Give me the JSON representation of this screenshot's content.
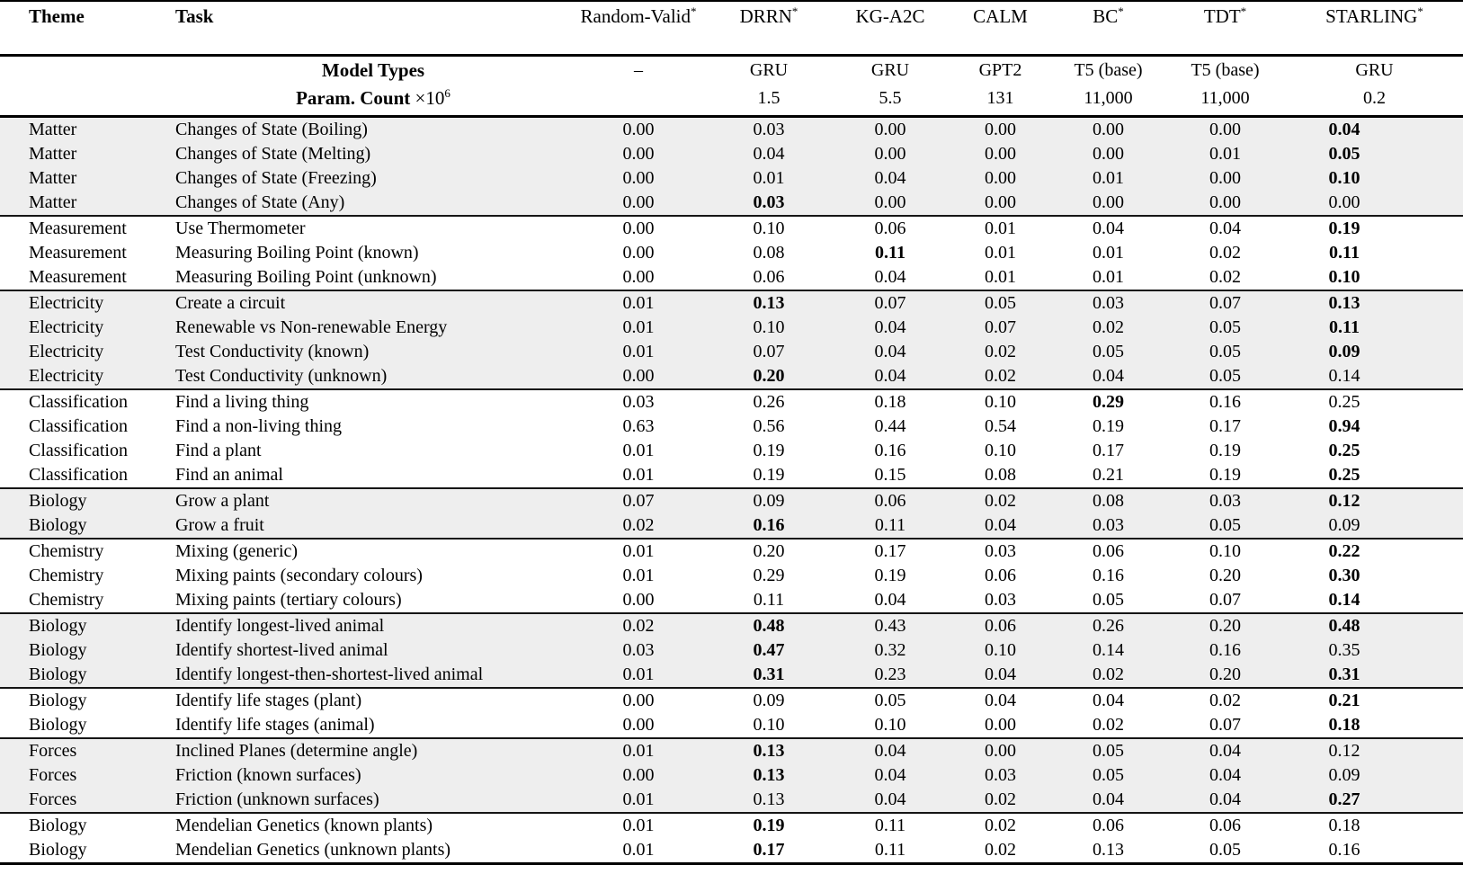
{
  "table": {
    "col_headers": {
      "theme": "Theme",
      "task": "Task"
    },
    "model_row_label": "Model Types",
    "param_row_label": "Param. Count",
    "param_times": "×10",
    "param_exp": "6",
    "columns": [
      {
        "label": "Random-Valid",
        "star": "*",
        "model": "–",
        "params": ""
      },
      {
        "label": "DRRN",
        "star": "*",
        "model": "GRU",
        "params": "1.5"
      },
      {
        "label": "KG-A2C",
        "star": "",
        "model": "GRU",
        "params": "5.5"
      },
      {
        "label": "CALM",
        "star": "",
        "model": "GPT2",
        "params": "131"
      },
      {
        "label": "BC",
        "star": "*",
        "model": "T5 (base)",
        "params": "11,000"
      },
      {
        "label": "TDT",
        "star": "*",
        "model": "T5 (base)",
        "params": "11,000"
      },
      {
        "label": "STARLING",
        "star": "*",
        "model": "GRU",
        "params": "0.2"
      }
    ],
    "groups": [
      {
        "shaded": true,
        "rows": [
          {
            "theme": "Matter",
            "task": "Changes of State (Boiling)",
            "values": [
              "0.00",
              "0.03",
              "0.00",
              "0.00",
              "0.00",
              "0.00",
              "0.04"
            ],
            "bold": [
              6
            ]
          },
          {
            "theme": "Matter",
            "task": "Changes of State (Melting)",
            "values": [
              "0.00",
              "0.04",
              "0.00",
              "0.00",
              "0.00",
              "0.01",
              "0.05"
            ],
            "bold": [
              6
            ]
          },
          {
            "theme": "Matter",
            "task": "Changes of State (Freezing)",
            "values": [
              "0.00",
              "0.01",
              "0.04",
              "0.00",
              "0.01",
              "0.00",
              "0.10"
            ],
            "bold": [
              6
            ]
          },
          {
            "theme": "Matter",
            "task": "Changes of State (Any)",
            "values": [
              "0.00",
              "0.03",
              "0.00",
              "0.00",
              "0.00",
              "0.00",
              "0.00"
            ],
            "bold": [
              1
            ]
          }
        ]
      },
      {
        "shaded": false,
        "rows": [
          {
            "theme": "Measurement",
            "task": "Use Thermometer",
            "values": [
              "0.00",
              "0.10",
              "0.06",
              "0.01",
              "0.04",
              "0.04",
              "0.19"
            ],
            "bold": [
              6
            ]
          },
          {
            "theme": "Measurement",
            "task": "Measuring Boiling Point (known)",
            "values": [
              "0.00",
              "0.08",
              "0.11",
              "0.01",
              "0.01",
              "0.02",
              "0.11"
            ],
            "bold": [
              2,
              6
            ]
          },
          {
            "theme": "Measurement",
            "task": "Measuring Boiling Point (unknown)",
            "values": [
              "0.00",
              "0.06",
              "0.04",
              "0.01",
              "0.01",
              "0.02",
              "0.10"
            ],
            "bold": [
              6
            ]
          }
        ]
      },
      {
        "shaded": true,
        "rows": [
          {
            "theme": "Electricity",
            "task": "Create a circuit",
            "values": [
              "0.01",
              "0.13",
              "0.07",
              "0.05",
              "0.03",
              "0.07",
              "0.13"
            ],
            "bold": [
              1,
              6
            ]
          },
          {
            "theme": "Electricity",
            "task": "Renewable vs Non-renewable Energy",
            "values": [
              "0.01",
              "0.10",
              "0.04",
              "0.07",
              "0.02",
              "0.05",
              "0.11"
            ],
            "bold": [
              6
            ]
          },
          {
            "theme": "Electricity",
            "task": "Test Conductivity (known)",
            "values": [
              "0.01",
              "0.07",
              "0.04",
              "0.02",
              "0.05",
              "0.05",
              "0.09"
            ],
            "bold": [
              6
            ]
          },
          {
            "theme": "Electricity",
            "task": "Test Conductivity (unknown)",
            "values": [
              "0.00",
              "0.20",
              "0.04",
              "0.02",
              "0.04",
              "0.05",
              "0.14"
            ],
            "bold": [
              1
            ]
          }
        ]
      },
      {
        "shaded": false,
        "rows": [
          {
            "theme": "Classification",
            "task": "Find a living thing",
            "values": [
              "0.03",
              "0.26",
              "0.18",
              "0.10",
              "0.29",
              "0.16",
              "0.25"
            ],
            "bold": [
              4
            ]
          },
          {
            "theme": "Classification",
            "task": "Find a non-living thing",
            "values": [
              "0.63",
              "0.56",
              "0.44",
              "0.54",
              "0.19",
              "0.17",
              "0.94"
            ],
            "bold": [
              6
            ]
          },
          {
            "theme": "Classification",
            "task": "Find a plant",
            "values": [
              "0.01",
              "0.19",
              "0.16",
              "0.10",
              "0.17",
              "0.19",
              "0.25"
            ],
            "bold": [
              6
            ]
          },
          {
            "theme": "Classification",
            "task": "Find an animal",
            "values": [
              "0.01",
              "0.19",
              "0.15",
              "0.08",
              "0.21",
              "0.19",
              "0.25"
            ],
            "bold": [
              6
            ]
          }
        ]
      },
      {
        "shaded": true,
        "rows": [
          {
            "theme": "Biology",
            "task": "Grow a plant",
            "values": [
              "0.07",
              "0.09",
              "0.06",
              "0.02",
              "0.08",
              "0.03",
              "0.12"
            ],
            "bold": [
              6
            ]
          },
          {
            "theme": "Biology",
            "task": "Grow a fruit",
            "values": [
              "0.02",
              "0.16",
              "0.11",
              "0.04",
              "0.03",
              "0.05",
              "0.09"
            ],
            "bold": [
              1
            ]
          }
        ]
      },
      {
        "shaded": false,
        "rows": [
          {
            "theme": "Chemistry",
            "task": "Mixing (generic)",
            "values": [
              "0.01",
              "0.20",
              "0.17",
              "0.03",
              "0.06",
              "0.10",
              "0.22"
            ],
            "bold": [
              6
            ]
          },
          {
            "theme": "Chemistry",
            "task": "Mixing paints (secondary colours)",
            "values": [
              "0.01",
              "0.29",
              "0.19",
              "0.06",
              "0.16",
              "0.20",
              "0.30"
            ],
            "bold": [
              6
            ]
          },
          {
            "theme": "Chemistry",
            "task": "Mixing paints (tertiary colours)",
            "values": [
              "0.00",
              "0.11",
              "0.04",
              "0.03",
              "0.05",
              "0.07",
              "0.14"
            ],
            "bold": [
              6
            ]
          }
        ]
      },
      {
        "shaded": true,
        "rows": [
          {
            "theme": "Biology",
            "task": "Identify longest-lived animal",
            "values": [
              "0.02",
              "0.48",
              "0.43",
              "0.06",
              "0.26",
              "0.20",
              "0.48"
            ],
            "bold": [
              1,
              6
            ]
          },
          {
            "theme": "Biology",
            "task": "Identify shortest-lived animal",
            "values": [
              "0.03",
              "0.47",
              "0.32",
              "0.10",
              "0.14",
              "0.16",
              "0.35"
            ],
            "bold": [
              1
            ]
          },
          {
            "theme": "Biology",
            "task": "Identify longest-then-shortest-lived animal",
            "values": [
              "0.01",
              "0.31",
              "0.23",
              "0.04",
              "0.02",
              "0.20",
              "0.31"
            ],
            "bold": [
              1,
              6
            ]
          }
        ]
      },
      {
        "shaded": false,
        "rows": [
          {
            "theme": "Biology",
            "task": "Identify life stages (plant)",
            "values": [
              "0.00",
              "0.09",
              "0.05",
              "0.04",
              "0.04",
              "0.02",
              "0.21"
            ],
            "bold": [
              6
            ]
          },
          {
            "theme": "Biology",
            "task": "Identify life stages (animal)",
            "values": [
              "0.00",
              "0.10",
              "0.10",
              "0.00",
              "0.02",
              "0.07",
              "0.18"
            ],
            "bold": [
              6
            ]
          }
        ]
      },
      {
        "shaded": true,
        "rows": [
          {
            "theme": "Forces",
            "task": "Inclined Planes (determine angle)",
            "values": [
              "0.01",
              "0.13",
              "0.04",
              "0.00",
              "0.05",
              "0.04",
              "0.12"
            ],
            "bold": [
              1
            ]
          },
          {
            "theme": "Forces",
            "task": "Friction (known surfaces)",
            "values": [
              "0.00",
              "0.13",
              "0.04",
              "0.03",
              "0.05",
              "0.04",
              "0.09"
            ],
            "bold": [
              1
            ]
          },
          {
            "theme": "Forces",
            "task": "Friction (unknown surfaces)",
            "values": [
              "0.01",
              "0.13",
              "0.04",
              "0.02",
              "0.04",
              "0.04",
              "0.27"
            ],
            "bold": [
              6
            ]
          }
        ]
      },
      {
        "shaded": false,
        "rows": [
          {
            "theme": "Biology",
            "task": "Mendelian Genetics (known plants)",
            "values": [
              "0.01",
              "0.19",
              "0.11",
              "0.02",
              "0.06",
              "0.06",
              "0.18"
            ],
            "bold": [
              1
            ]
          },
          {
            "theme": "Biology",
            "task": "Mendelian Genetics (unknown plants)",
            "values": [
              "0.01",
              "0.17",
              "0.11",
              "0.02",
              "0.13",
              "0.05",
              "0.16"
            ],
            "bold": [
              1
            ]
          }
        ]
      }
    ]
  }
}
